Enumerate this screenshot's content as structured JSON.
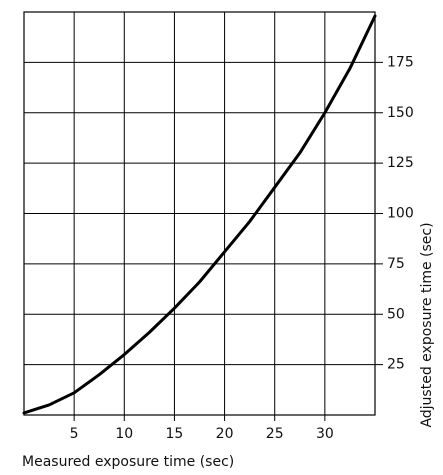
{
  "chart_data": {
    "type": "line",
    "x_label": "Measured exposure time (sec)",
    "y_label": "Adjusted exposure time (sec)",
    "x": [
      0,
      2.5,
      5,
      7.5,
      10,
      12.5,
      15,
      17.5,
      20,
      22.5,
      25,
      27.5,
      30,
      32.5,
      35
    ],
    "series": [
      {
        "color": "#000000",
        "values": [
          1,
          5,
          11,
          20,
          30,
          41,
          53,
          66,
          81,
          96,
          113,
          130,
          150,
          172,
          198
        ]
      }
    ],
    "xlim": [
      0,
      35
    ],
    "xticks": [
      5,
      10,
      15,
      20,
      25,
      30
    ],
    "ylim": [
      0,
      200
    ],
    "yticks": [
      25,
      50,
      75,
      100,
      125,
      150,
      175
    ],
    "grid": true,
    "y_axis_side": "right"
  }
}
